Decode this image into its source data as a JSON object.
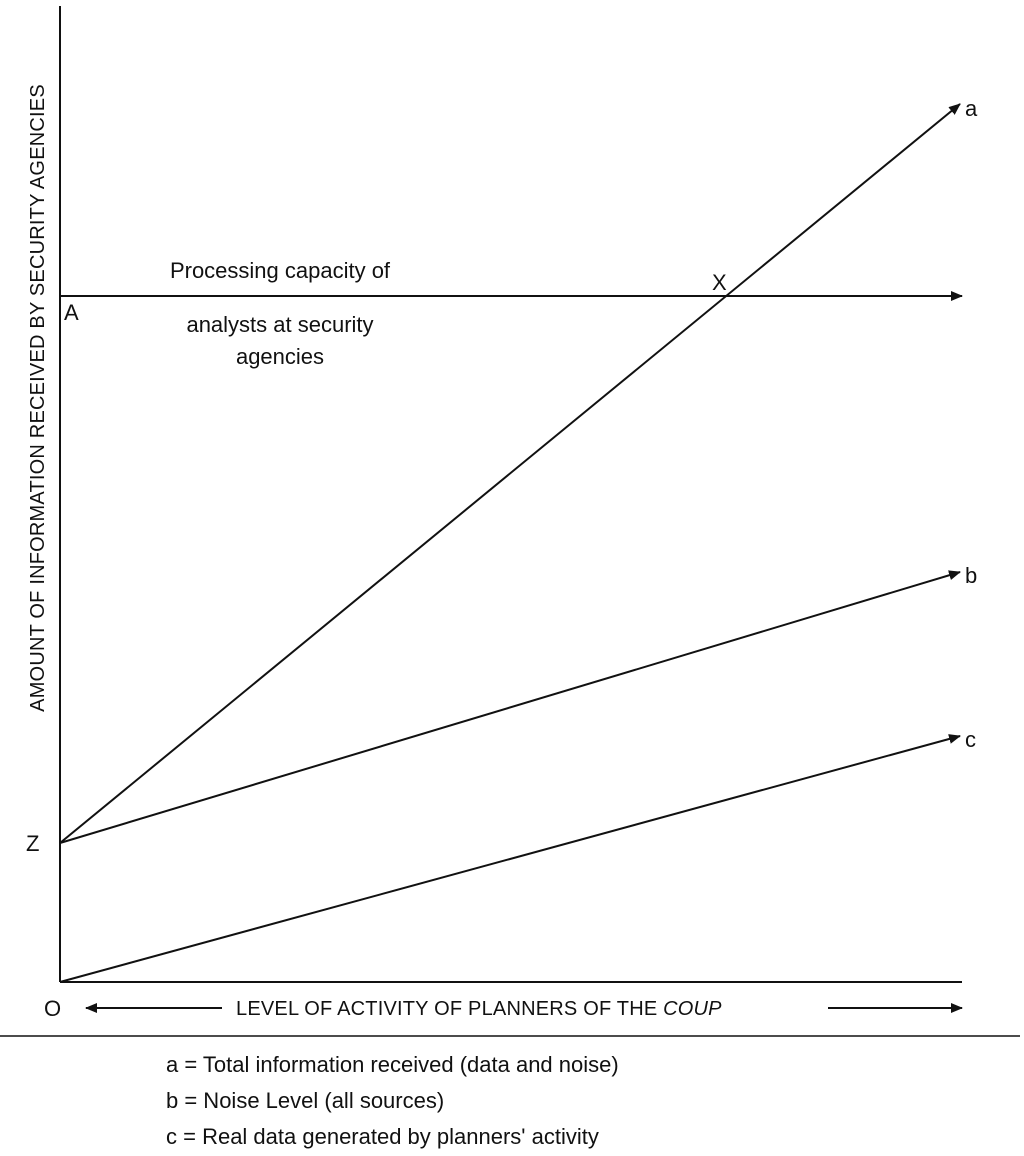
{
  "y_axis_label": "AMOUNT OF INFORMATION RECEIVED BY SECURITY AGENCIES",
  "x_axis_label": {
    "main": "LEVEL OF ACTIVITY OF PLANNERS OF THE ",
    "emphasis": "COUP"
  },
  "origin_label": "O",
  "points": {
    "A": "A",
    "Z": "Z",
    "X": "X"
  },
  "capacity_label": {
    "line1": "Processing capacity of",
    "line2": "analysts at security",
    "line3": "agencies"
  },
  "lines": [
    {
      "id": "a",
      "label": "a"
    },
    {
      "id": "b",
      "label": "b"
    },
    {
      "id": "c",
      "label": "c"
    }
  ],
  "legend": [
    "a = Total information received (data and noise)",
    "b = Noise Level (all sources)",
    "c = Real data generated by planners' activity"
  ],
  "colors": {
    "line": "#111111",
    "text": "#111111",
    "background": "#ffffff"
  }
}
